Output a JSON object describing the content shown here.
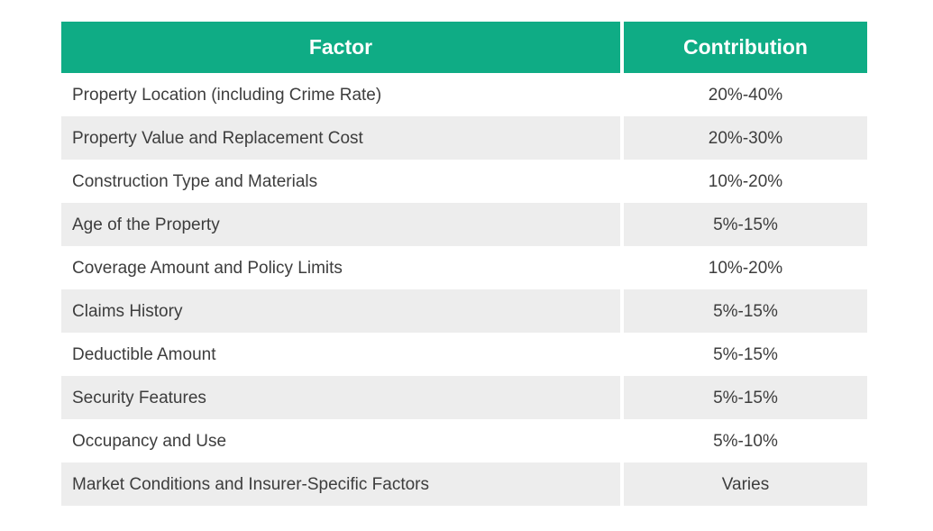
{
  "colors": {
    "header_bg": "#0fac85",
    "alt_row_bg": "#ededed",
    "header_text": "#ffffff",
    "body_text": "#3d3d3d"
  },
  "table": {
    "columns": [
      {
        "label": "Factor"
      },
      {
        "label": "Contribution"
      }
    ],
    "rows": [
      {
        "factor": "Property Location (including Crime Rate)",
        "contribution": "20%-40%"
      },
      {
        "factor": "Property Value and Replacement Cost",
        "contribution": "20%-30%"
      },
      {
        "factor": "Construction Type and Materials",
        "contribution": "10%-20%"
      },
      {
        "factor": "Age of the Property",
        "contribution": "5%-15%"
      },
      {
        "factor": "Coverage Amount and Policy Limits",
        "contribution": "10%-20%"
      },
      {
        "factor": "Claims History",
        "contribution": "5%-15%"
      },
      {
        "factor": "Deductible Amount",
        "contribution": "5%-15%"
      },
      {
        "factor": "Security Features",
        "contribution": "5%-15%"
      },
      {
        "factor": "Occupancy and Use",
        "contribution": "5%-10%"
      },
      {
        "factor": "Market Conditions and Insurer-Specific Factors",
        "contribution": "Varies"
      }
    ]
  },
  "chart_data": {
    "type": "table",
    "title": "",
    "columns": [
      "Factor",
      "Contribution"
    ],
    "rows": [
      [
        "Property Location (including Crime Rate)",
        "20%-40%"
      ],
      [
        "Property Value and Replacement Cost",
        "20%-30%"
      ],
      [
        "Construction Type and Materials",
        "10%-20%"
      ],
      [
        "Age of the Property",
        "5%-15%"
      ],
      [
        "Coverage Amount and Policy Limits",
        "10%-20%"
      ],
      [
        "Claims History",
        "5%-15%"
      ],
      [
        "Deductible Amount",
        "5%-15%"
      ],
      [
        "Security Features",
        "5%-15%"
      ],
      [
        "Occupancy and Use",
        "5%-10%"
      ],
      [
        "Market Conditions and Insurer-Specific Factors",
        "Varies"
      ]
    ],
    "layout_hints": {
      "header_style": "green-bold-centered",
      "row_striping": "white-then-light-gray",
      "factor_column_align": "left",
      "contribution_column_align": "center"
    }
  }
}
